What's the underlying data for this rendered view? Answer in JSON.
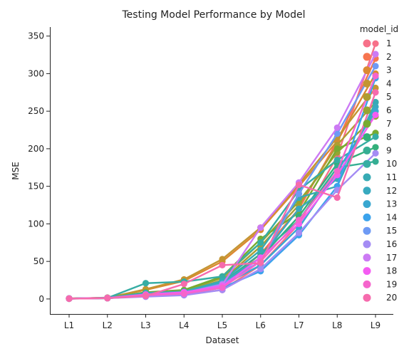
{
  "chart_data": {
    "type": "line",
    "title": "Testing Model Performance by Model",
    "xlabel": "Dataset",
    "ylabel": "MSE",
    "categories": [
      "L1",
      "L2",
      "L3",
      "L4",
      "L5",
      "L6",
      "L7",
      "L8",
      "L9"
    ],
    "ylim": [
      -20,
      362
    ],
    "yticks": [
      0,
      50,
      100,
      150,
      200,
      250,
      300,
      350
    ],
    "grid": false,
    "legend": {
      "title": "model_id",
      "placement": "right"
    },
    "series": [
      {
        "name": "1",
        "color": "#f77189",
        "values": [
          0.6,
          1.2,
          5,
          6,
          12,
          45,
          100,
          190,
          340
        ]
      },
      {
        "name": "2",
        "color": "#f7754f",
        "values": [
          0.8,
          1.0,
          4,
          7,
          18,
          60,
          120,
          210,
          320
        ]
      },
      {
        "name": "3",
        "color": "#dc8932",
        "values": [
          0.5,
          1.8,
          12,
          24,
          50,
          92,
          150,
          210,
          300
        ]
      },
      {
        "name": "4",
        "color": "#c39532",
        "values": [
          0.7,
          1.5,
          13,
          26,
          53,
          95,
          153,
          215,
          281
        ]
      },
      {
        "name": "5",
        "color": "#ae9d31",
        "values": [
          0.4,
          1.1,
          6,
          10,
          25,
          70,
          125,
          205,
          262
        ]
      },
      {
        "name": "6",
        "color": "#97a431",
        "values": [
          0.5,
          1.3,
          7,
          11,
          28,
          75,
          130,
          195,
          243
        ]
      },
      {
        "name": "7",
        "color": "#77ab31",
        "values": [
          0.6,
          1.6,
          9,
          12,
          30,
          80,
          115,
          200,
          221
        ]
      },
      {
        "name": "8",
        "color": "#33b07a",
        "values": [
          0.4,
          1.0,
          4,
          8,
          20,
          55,
          110,
          180,
          202
        ]
      },
      {
        "name": "9",
        "color": "#35ae93",
        "values": [
          0.5,
          1.2,
          5,
          9,
          22,
          60,
          105,
          175,
          183
        ]
      },
      {
        "name": "10",
        "color": "#36ada4",
        "values": [
          0.6,
          1.3,
          21,
          23,
          30,
          75,
          145,
          185,
          216
        ]
      },
      {
        "name": "11",
        "color": "#37abb4",
        "values": [
          0.5,
          1.4,
          8,
          10,
          24,
          65,
          135,
          150,
          262
        ]
      },
      {
        "name": "12",
        "color": "#38aabf",
        "values": [
          0.7,
          1.5,
          6,
          9,
          22,
          55,
          120,
          160,
          256
        ]
      },
      {
        "name": "13",
        "color": "#39a7d0",
        "values": [
          0.5,
          1.1,
          5,
          8,
          18,
          45,
          95,
          170,
          250
        ]
      },
      {
        "name": "14",
        "color": "#3ba3ec",
        "values": [
          0.4,
          1.0,
          4,
          7,
          15,
          37,
          85,
          150,
          294
        ]
      },
      {
        "name": "15",
        "color": "#6e9af4",
        "values": [
          0.6,
          1.2,
          5,
          8,
          20,
          50,
          140,
          220,
          310
        ]
      },
      {
        "name": "16",
        "color": "#a48cf4",
        "values": [
          0.5,
          1.1,
          3,
          5,
          12,
          40,
          88,
          145,
          194
        ]
      },
      {
        "name": "17",
        "color": "#cc7af4",
        "values": [
          0.5,
          1.3,
          5,
          8,
          19,
          95,
          155,
          228,
          326
        ]
      },
      {
        "name": "18",
        "color": "#f45cf2",
        "values": [
          0.6,
          1.4,
          6,
          9,
          17,
          55,
          100,
          165,
          245
        ]
      },
      {
        "name": "19",
        "color": "#f565cc",
        "values": [
          0.5,
          1.2,
          5,
          7,
          15,
          50,
          105,
          170,
          297
        ]
      },
      {
        "name": "20",
        "color": "#f66bad",
        "values": [
          0.4,
          1.0,
          4,
          20,
          45,
          48,
          152,
          135,
          275
        ]
      }
    ]
  }
}
